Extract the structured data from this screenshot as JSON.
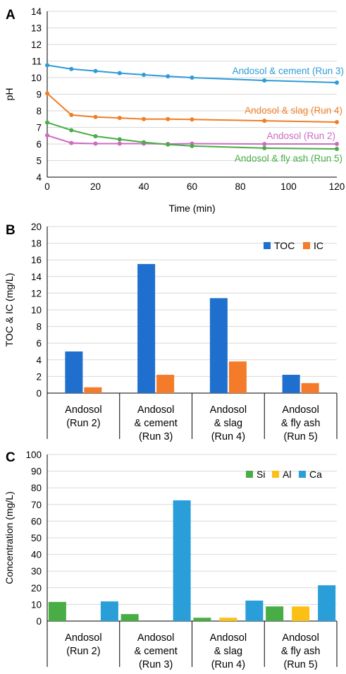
{
  "chart_data": [
    {
      "panel": "A",
      "type": "line",
      "xlabel": "Time (min)",
      "ylabel": "pH",
      "xlim": [
        0,
        120
      ],
      "ylim": [
        4,
        14
      ],
      "xticks": [
        0,
        20,
        40,
        60,
        80,
        100,
        120
      ],
      "yticks": [
        4,
        5,
        6,
        7,
        8,
        9,
        10,
        11,
        12,
        13,
        14
      ],
      "grid": true,
      "x": [
        0,
        10,
        20,
        30,
        40,
        50,
        60,
        90,
        120
      ],
      "series": [
        {
          "name": "Andosol & cement (Run 3)",
          "color": "#2e9bd6",
          "values": [
            10.75,
            10.52,
            10.4,
            10.27,
            10.17,
            10.08,
            10.0,
            9.83,
            9.7
          ]
        },
        {
          "name": "Andosol & slag (Run 4)",
          "color": "#f07e26",
          "values": [
            9.05,
            7.75,
            7.63,
            7.57,
            7.5,
            7.5,
            7.48,
            7.4,
            7.32
          ]
        },
        {
          "name": "Andosol (Run 2)",
          "color": "#cc6bc0",
          "values": [
            6.52,
            6.06,
            6.02,
            6.02,
            6.02,
            6.0,
            6.02,
            6.0,
            6.0
          ]
        },
        {
          "name": "Andosol & fly ash (Run 5)",
          "color": "#48ad45",
          "values": [
            7.3,
            6.83,
            6.47,
            6.28,
            6.1,
            5.97,
            5.88,
            5.75,
            5.7
          ]
        }
      ]
    },
    {
      "panel": "B",
      "type": "bar",
      "ylabel": "TOC & IC (mg/L)",
      "ylim": [
        0,
        20
      ],
      "yticks": [
        0,
        2,
        4,
        6,
        8,
        10,
        12,
        14,
        16,
        18,
        20
      ],
      "legend": "top-right",
      "categories": [
        [
          "Andosol",
          "(Run 2)"
        ],
        [
          "Andosol",
          "& cement",
          "(Run 3)"
        ],
        [
          "Andosol",
          "& slag",
          "(Run 4)"
        ],
        [
          "Andosol",
          "& fly ash",
          "(Run 5)"
        ]
      ],
      "series": [
        {
          "name": "TOC",
          "color": "#1f6fce",
          "values": [
            5.0,
            15.5,
            11.4,
            2.2
          ]
        },
        {
          "name": "IC",
          "color": "#f47b2a",
          "values": [
            0.7,
            2.2,
            3.8,
            1.2
          ]
        }
      ]
    },
    {
      "panel": "C",
      "type": "bar",
      "ylabel": "Concentration (mg/L)",
      "ylim": [
        0,
        100
      ],
      "yticks": [
        0,
        10,
        20,
        30,
        40,
        50,
        60,
        70,
        80,
        90,
        100
      ],
      "legend": "top-right",
      "categories": [
        [
          "Andosol",
          "(Run 2)"
        ],
        [
          "Andosol",
          "& cement",
          "(Run 3)"
        ],
        [
          "Andosol",
          "& slag",
          "(Run 4)"
        ],
        [
          "Andosol",
          "& fly ash",
          "(Run 5)"
        ]
      ],
      "series": [
        {
          "name": "Si",
          "color": "#48ad45",
          "values": [
            11.5,
            4.2,
            2.0,
            8.8
          ]
        },
        {
          "name": "Al",
          "color": "#fbbf16",
          "values": [
            0,
            0,
            2.0,
            8.8
          ]
        },
        {
          "name": "Ca",
          "color": "#2a9ed9",
          "values": [
            11.8,
            72.5,
            12.3,
            21.5
          ]
        }
      ]
    }
  ]
}
